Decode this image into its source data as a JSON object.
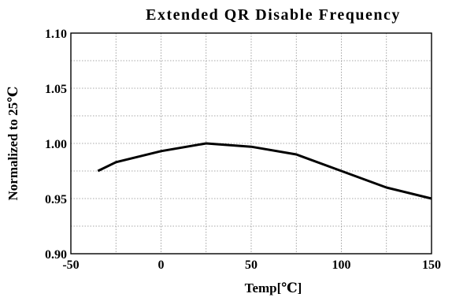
{
  "chart_data": {
    "type": "line",
    "title": "Extended QR Disable Frequency",
    "xlabel": "Temp[℃]",
    "ylabel": "Normalized to 25℃",
    "xlim": [
      -50,
      150
    ],
    "ylim": [
      0.9,
      1.1
    ],
    "x_ticks": [
      "-50",
      "0",
      "50",
      "100",
      "150"
    ],
    "x_tick_values": [
      -50,
      0,
      50,
      100,
      150
    ],
    "y_ticks": [
      "0.90",
      "0.95",
      "1.00",
      "1.05",
      "1.10"
    ],
    "y_tick_values": [
      0.9,
      0.95,
      1.0,
      1.05,
      1.1
    ],
    "grid": true,
    "series": [
      {
        "x": [
          -35,
          -25,
          0,
          25,
          50,
          75,
          100,
          125,
          150
        ],
        "y": [
          0.975,
          0.983,
          0.993,
          1.0,
          0.997,
          0.99,
          0.975,
          0.96,
          0.95
        ]
      }
    ],
    "colors": {
      "line": "#000000",
      "grid": "#8c8c8c",
      "frame": "#000000",
      "background": "#ffffff"
    }
  }
}
